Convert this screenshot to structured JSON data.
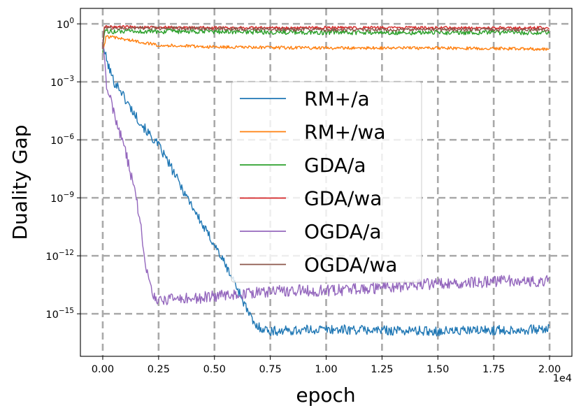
{
  "chart_data": {
    "type": "line",
    "title": "",
    "xlabel": "epoch",
    "ylabel": "Duality Gap",
    "x_offset_label": "1e4",
    "xlim": [
      -1000,
      21000
    ],
    "ylim_log10": [
      -17.2,
      0.8
    ],
    "y_scale": "log",
    "grid": true,
    "legend_placement": "center",
    "xticks": [
      {
        "value": 0,
        "label": "0.00"
      },
      {
        "value": 2500,
        "label": "0.25"
      },
      {
        "value": 5000,
        "label": "0.50"
      },
      {
        "value": 7500,
        "label": "0.75"
      },
      {
        "value": 10000,
        "label": "1.00"
      },
      {
        "value": 12500,
        "label": "1.25"
      },
      {
        "value": 15000,
        "label": "1.50"
      },
      {
        "value": 17500,
        "label": "1.75"
      },
      {
        "value": 20000,
        "label": "2.00"
      }
    ],
    "yticks": [
      {
        "exp": 0,
        "base": "10",
        "sup": "0"
      },
      {
        "exp": -3,
        "base": "10",
        "sup": "−3"
      },
      {
        "exp": -6,
        "base": "10",
        "sup": "−6"
      },
      {
        "exp": -9,
        "base": "10",
        "sup": "−9"
      },
      {
        "exp": -12,
        "base": "10",
        "sup": "−12"
      },
      {
        "exp": -15,
        "base": "10",
        "sup": "−15"
      }
    ],
    "series": [
      {
        "name": "RM+/a",
        "color": "#1f77b4",
        "noise_log10": 0.25,
        "points": [
          [
            0,
            -1
          ],
          [
            200,
            -2
          ],
          [
            500,
            -3
          ],
          [
            800,
            -3.4
          ],
          [
            1000,
            -3.9
          ],
          [
            1500,
            -4.8
          ],
          [
            2000,
            -5.6
          ],
          [
            2500,
            -6.3
          ],
          [
            3000,
            -7.3
          ],
          [
            3500,
            -8.4
          ],
          [
            4000,
            -9.4
          ],
          [
            4500,
            -10.5
          ],
          [
            5000,
            -11.4
          ],
          [
            5500,
            -12.5
          ],
          [
            6000,
            -13.6
          ],
          [
            6500,
            -14.9
          ],
          [
            6800,
            -15.6
          ],
          [
            7500,
            -15.9
          ],
          [
            10000,
            -15.8
          ],
          [
            12500,
            -15.85
          ],
          [
            15000,
            -15.9
          ],
          [
            17500,
            -15.85
          ],
          [
            20000,
            -15.8
          ]
        ]
      },
      {
        "name": "RM+/wa",
        "color": "#ff7f0e",
        "noise_log10": 0.08,
        "points": [
          [
            0,
            -1.5
          ],
          [
            150,
            -0.65
          ],
          [
            1000,
            -0.8
          ],
          [
            2500,
            -1.1
          ],
          [
            5000,
            -1.2
          ],
          [
            10000,
            -1.25
          ],
          [
            15000,
            -1.25
          ],
          [
            20000,
            -1.3
          ]
        ]
      },
      {
        "name": "GDA/a",
        "color": "#2ca02c",
        "noise_log10": 0.12,
        "points": [
          [
            0,
            -1.5
          ],
          [
            60,
            -0.4
          ],
          [
            5000,
            -0.4
          ],
          [
            10000,
            -0.45
          ],
          [
            15000,
            -0.45
          ],
          [
            20000,
            -0.45
          ]
        ]
      },
      {
        "name": "GDA/wa",
        "color": "#d62728",
        "noise_log10": 0.07,
        "points": [
          [
            0,
            -1.2
          ],
          [
            60,
            -0.15
          ],
          [
            5000,
            -0.2
          ],
          [
            10000,
            -0.2
          ],
          [
            15000,
            -0.2
          ],
          [
            20000,
            -0.2
          ]
        ]
      },
      {
        "name": "OGDA/a",
        "color": "#9467bd",
        "noise_log10": 0.3,
        "points": [
          [
            0,
            -0.8
          ],
          [
            150,
            -3
          ],
          [
            400,
            -4.2
          ],
          [
            700,
            -5.4
          ],
          [
            1000,
            -6.5
          ],
          [
            1300,
            -8
          ],
          [
            1600,
            -9.7
          ],
          [
            1800,
            -11.3
          ],
          [
            2000,
            -13
          ],
          [
            2200,
            -14
          ],
          [
            2500,
            -14.3
          ],
          [
            4000,
            -14.2
          ],
          [
            6000,
            -14
          ],
          [
            8000,
            -13.8
          ],
          [
            10000,
            -13.8
          ],
          [
            12000,
            -13.7
          ],
          [
            14000,
            -13.5
          ],
          [
            16000,
            -13.4
          ],
          [
            18000,
            -13.3
          ],
          [
            20000,
            -13.3
          ]
        ]
      },
      {
        "name": "OGDA/wa",
        "color": "#8c564b",
        "noise_log10": 0.09,
        "points": [
          [
            0,
            -1.3
          ],
          [
            60,
            -0.2
          ],
          [
            5000,
            -0.25
          ],
          [
            10000,
            -0.3
          ],
          [
            15000,
            -0.3
          ],
          [
            20000,
            -0.3
          ]
        ]
      }
    ]
  }
}
